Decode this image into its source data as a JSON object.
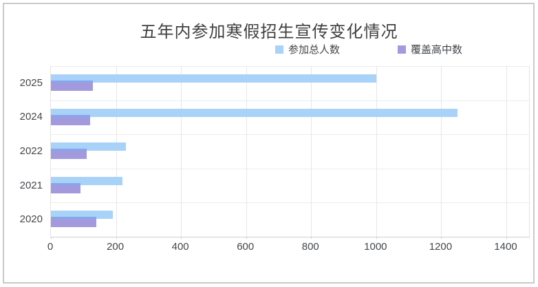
{
  "window": {
    "background": "#ffffff",
    "border_color": "#c9c9c9"
  },
  "chart_data": {
    "type": "bar",
    "orientation": "horizontal",
    "title": "五年内参加寒假招生宣传变化情况",
    "categories": [
      "2025",
      "2024",
      "2022",
      "2021",
      "2020"
    ],
    "series": [
      {
        "name": "参加总人数",
        "color": "#a9d2f8",
        "values": [
          1000,
          1250,
          230,
          220,
          190
        ]
      },
      {
        "name": "覆盖高中数",
        "color": "#a29adc",
        "values": [
          130,
          120,
          110,
          90,
          140
        ]
      }
    ],
    "overlap_color": "#86a7eb",
    "x_ticks": [
      0,
      200,
      400,
      600,
      800,
      1000,
      1200,
      1400
    ],
    "xlim": [
      0,
      1400
    ],
    "xlabel": "",
    "ylabel": "",
    "grid": true,
    "legend_position": "top",
    "text_color": "#43464a",
    "title_color": "#3f3f3f",
    "gridline_color": "#e6e6e6",
    "axis_line_color": "#cfcfcf"
  }
}
